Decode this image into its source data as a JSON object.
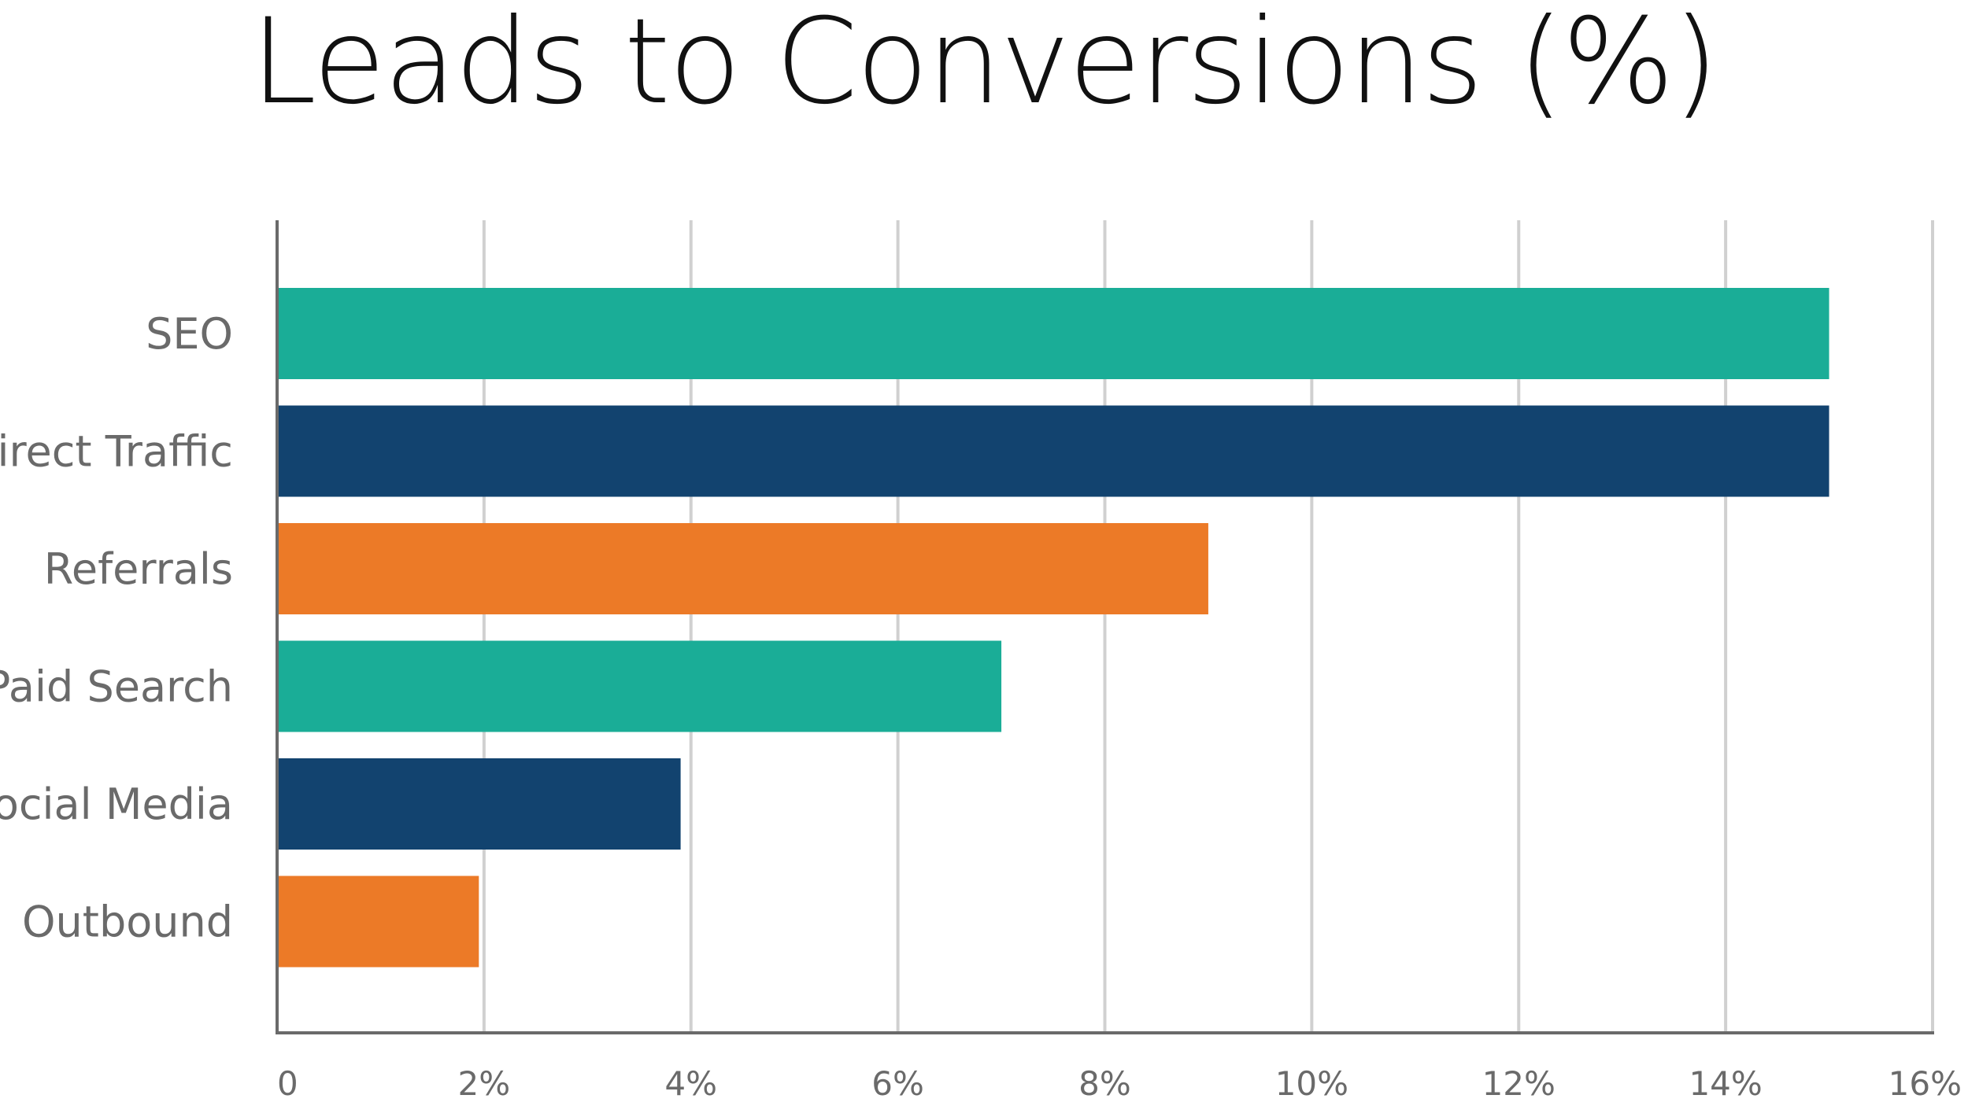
{
  "chart_data": {
    "type": "bar",
    "orientation": "horizontal",
    "title": "Leads to Conversions (%)",
    "categories": [
      "SEO",
      "Direct Traffic",
      "Referrals",
      "Paid Search",
      "Social Media",
      "Outbound"
    ],
    "values": [
      15,
      15,
      9,
      7,
      3.9,
      1.95
    ],
    "bar_colors": [
      "#1aad97",
      "#12436f",
      "#ec7a27",
      "#1aad97",
      "#12436f",
      "#ec7a27"
    ],
    "xlim": [
      0,
      16
    ],
    "xticks": [
      0,
      2,
      4,
      6,
      8,
      10,
      12,
      14,
      16
    ],
    "xtick_labels": [
      "0",
      "2%",
      "4%",
      "6%",
      "8%",
      "10%",
      "12%",
      "14%",
      "16%"
    ],
    "xlabel": "",
    "ylabel": "",
    "grid": "vertical",
    "grid_color": "#d0d0d0",
    "axis_color": "#6a6a6a",
    "legend": "none"
  }
}
